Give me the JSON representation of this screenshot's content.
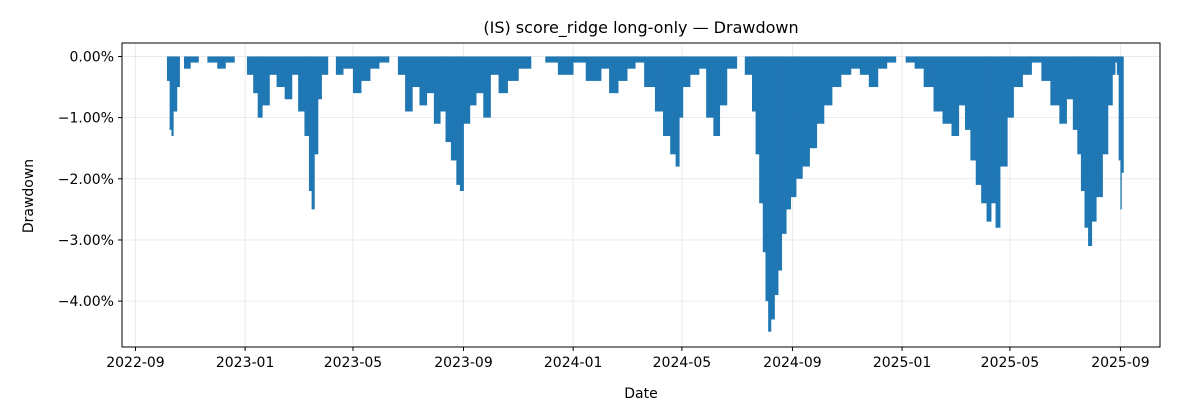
{
  "chart_data": {
    "type": "area",
    "title": "(IS) score_ridge long-only — Drawdown",
    "xlabel": "Date",
    "ylabel": "Drawdown",
    "ylim": [
      -4.75,
      0.22
    ],
    "xlim": [
      "2022-08-17",
      "2025-10-15"
    ],
    "grid": true,
    "colors": {
      "fill": "#1f77b4"
    },
    "x_ticks": [
      "2022-09",
      "2023-01",
      "2023-05",
      "2023-09",
      "2024-01",
      "2024-05",
      "2024-09",
      "2025-01",
      "2025-05",
      "2025-09"
    ],
    "y_ticks": [
      {
        "value": 0,
        "label": "0.00%"
      },
      {
        "value": -1,
        "label": "−1.00%"
      },
      {
        "value": -2,
        "label": "−2.00%"
      },
      {
        "value": -3,
        "label": "−3.00%"
      },
      {
        "value": -4,
        "label": "−4.00%"
      }
    ],
    "y_unit": "percent",
    "x": [
      "2022-10-04",
      "2022-10-06",
      "2022-10-09",
      "2022-10-11",
      "2022-10-13",
      "2022-10-17",
      "2022-10-20",
      "2022-10-25",
      "2022-11-01",
      "2022-11-10",
      "2022-11-20",
      "2022-12-01",
      "2022-12-10",
      "2022-12-20",
      "2023-01-03",
      "2023-01-10",
      "2023-01-15",
      "2023-01-20",
      "2023-01-28",
      "2023-02-05",
      "2023-02-14",
      "2023-02-22",
      "2023-03-01",
      "2023-03-08",
      "2023-03-13",
      "2023-03-16",
      "2023-03-19",
      "2023-03-23",
      "2023-03-27",
      "2023-04-03",
      "2023-04-12",
      "2023-04-20",
      "2023-05-01",
      "2023-05-10",
      "2023-05-20",
      "2023-05-30",
      "2023-06-10",
      "2023-06-20",
      "2023-06-28",
      "2023-07-06",
      "2023-07-14",
      "2023-07-22",
      "2023-07-30",
      "2023-08-06",
      "2023-08-12",
      "2023-08-18",
      "2023-08-24",
      "2023-08-28",
      "2023-09-01",
      "2023-09-08",
      "2023-09-15",
      "2023-09-23",
      "2023-10-01",
      "2023-10-10",
      "2023-10-20",
      "2023-11-01",
      "2023-11-15",
      "2023-12-01",
      "2023-12-15",
      "2024-01-01",
      "2024-01-15",
      "2024-02-01",
      "2024-02-10",
      "2024-02-20",
      "2024-03-01",
      "2024-03-10",
      "2024-03-20",
      "2024-04-01",
      "2024-04-10",
      "2024-04-18",
      "2024-04-24",
      "2024-04-28",
      "2024-05-02",
      "2024-05-10",
      "2024-05-20",
      "2024-05-28",
      "2024-06-05",
      "2024-06-12",
      "2024-06-20",
      "2024-07-01",
      "2024-07-10",
      "2024-07-18",
      "2024-07-22",
      "2024-07-26",
      "2024-07-30",
      "2024-08-02",
      "2024-08-05",
      "2024-08-08",
      "2024-08-12",
      "2024-08-16",
      "2024-08-20",
      "2024-08-25",
      "2024-08-30",
      "2024-09-05",
      "2024-09-12",
      "2024-09-20",
      "2024-09-28",
      "2024-10-06",
      "2024-10-15",
      "2024-10-25",
      "2024-11-05",
      "2024-11-15",
      "2024-11-25",
      "2024-12-05",
      "2024-12-15",
      "2024-12-25",
      "2025-01-05",
      "2025-01-15",
      "2025-01-25",
      "2025-02-05",
      "2025-02-15",
      "2025-02-25",
      "2025-03-05",
      "2025-03-12",
      "2025-03-18",
      "2025-03-24",
      "2025-03-30",
      "2025-04-05",
      "2025-04-10",
      "2025-04-15",
      "2025-04-20",
      "2025-04-28",
      "2025-05-05",
      "2025-05-15",
      "2025-05-25",
      "2025-06-05",
      "2025-06-15",
      "2025-06-25",
      "2025-07-03",
      "2025-07-10",
      "2025-07-15",
      "2025-07-19",
      "2025-07-23",
      "2025-07-27",
      "2025-07-31",
      "2025-08-05",
      "2025-08-12",
      "2025-08-18",
      "2025-08-23",
      "2025-08-26",
      "2025-08-28",
      "2025-08-30",
      "2025-09-01",
      "2025-09-02"
    ],
    "values": [
      0,
      -0.4,
      -1.2,
      -1.3,
      -0.9,
      -0.5,
      0,
      -0.2,
      -0.1,
      0,
      -0.1,
      -0.2,
      -0.1,
      0,
      -0.3,
      -0.6,
      -1.0,
      -0.8,
      -0.3,
      -0.5,
      -0.7,
      -0.3,
      -0.9,
      -1.3,
      -2.2,
      -2.5,
      -1.6,
      -0.7,
      -0.3,
      0,
      -0.3,
      -0.2,
      -0.6,
      -0.4,
      -0.2,
      -0.1,
      0,
      -0.3,
      -0.9,
      -0.5,
      -0.8,
      -0.6,
      -1.1,
      -0.9,
      -1.4,
      -1.7,
      -2.1,
      -2.2,
      -1.1,
      -0.8,
      -0.6,
      -1.0,
      -0.3,
      -0.6,
      -0.4,
      -0.2,
      0,
      -0.1,
      -0.3,
      -0.1,
      -0.4,
      -0.2,
      -0.6,
      -0.4,
      -0.2,
      -0.1,
      -0.5,
      -0.9,
      -1.3,
      -1.6,
      -1.8,
      -1.0,
      -0.5,
      -0.3,
      -0.2,
      -1.0,
      -1.3,
      -0.8,
      -0.2,
      0,
      -0.3,
      -0.9,
      -1.6,
      -2.4,
      -3.2,
      -4.0,
      -4.5,
      -4.3,
      -3.9,
      -3.5,
      -2.9,
      -2.5,
      -2.3,
      -2.0,
      -1.8,
      -1.5,
      -1.1,
      -0.8,
      -0.5,
      -0.3,
      -0.2,
      -0.3,
      -0.5,
      -0.2,
      -0.1,
      0,
      -0.1,
      -0.2,
      -0.5,
      -0.9,
      -1.1,
      -1.3,
      -0.8,
      -1.2,
      -1.7,
      -2.1,
      -2.4,
      -2.7,
      -2.4,
      -2.8,
      -1.8,
      -1.0,
      -0.5,
      -0.3,
      -0.1,
      -0.4,
      -0.8,
      -1.1,
      -0.7,
      -1.2,
      -1.6,
      -2.2,
      -2.8,
      -3.1,
      -2.7,
      -2.3,
      -1.6,
      -0.8,
      -0.3,
      -0.1,
      -0.3,
      -1.7,
      -2.5,
      -1.9
    ]
  }
}
